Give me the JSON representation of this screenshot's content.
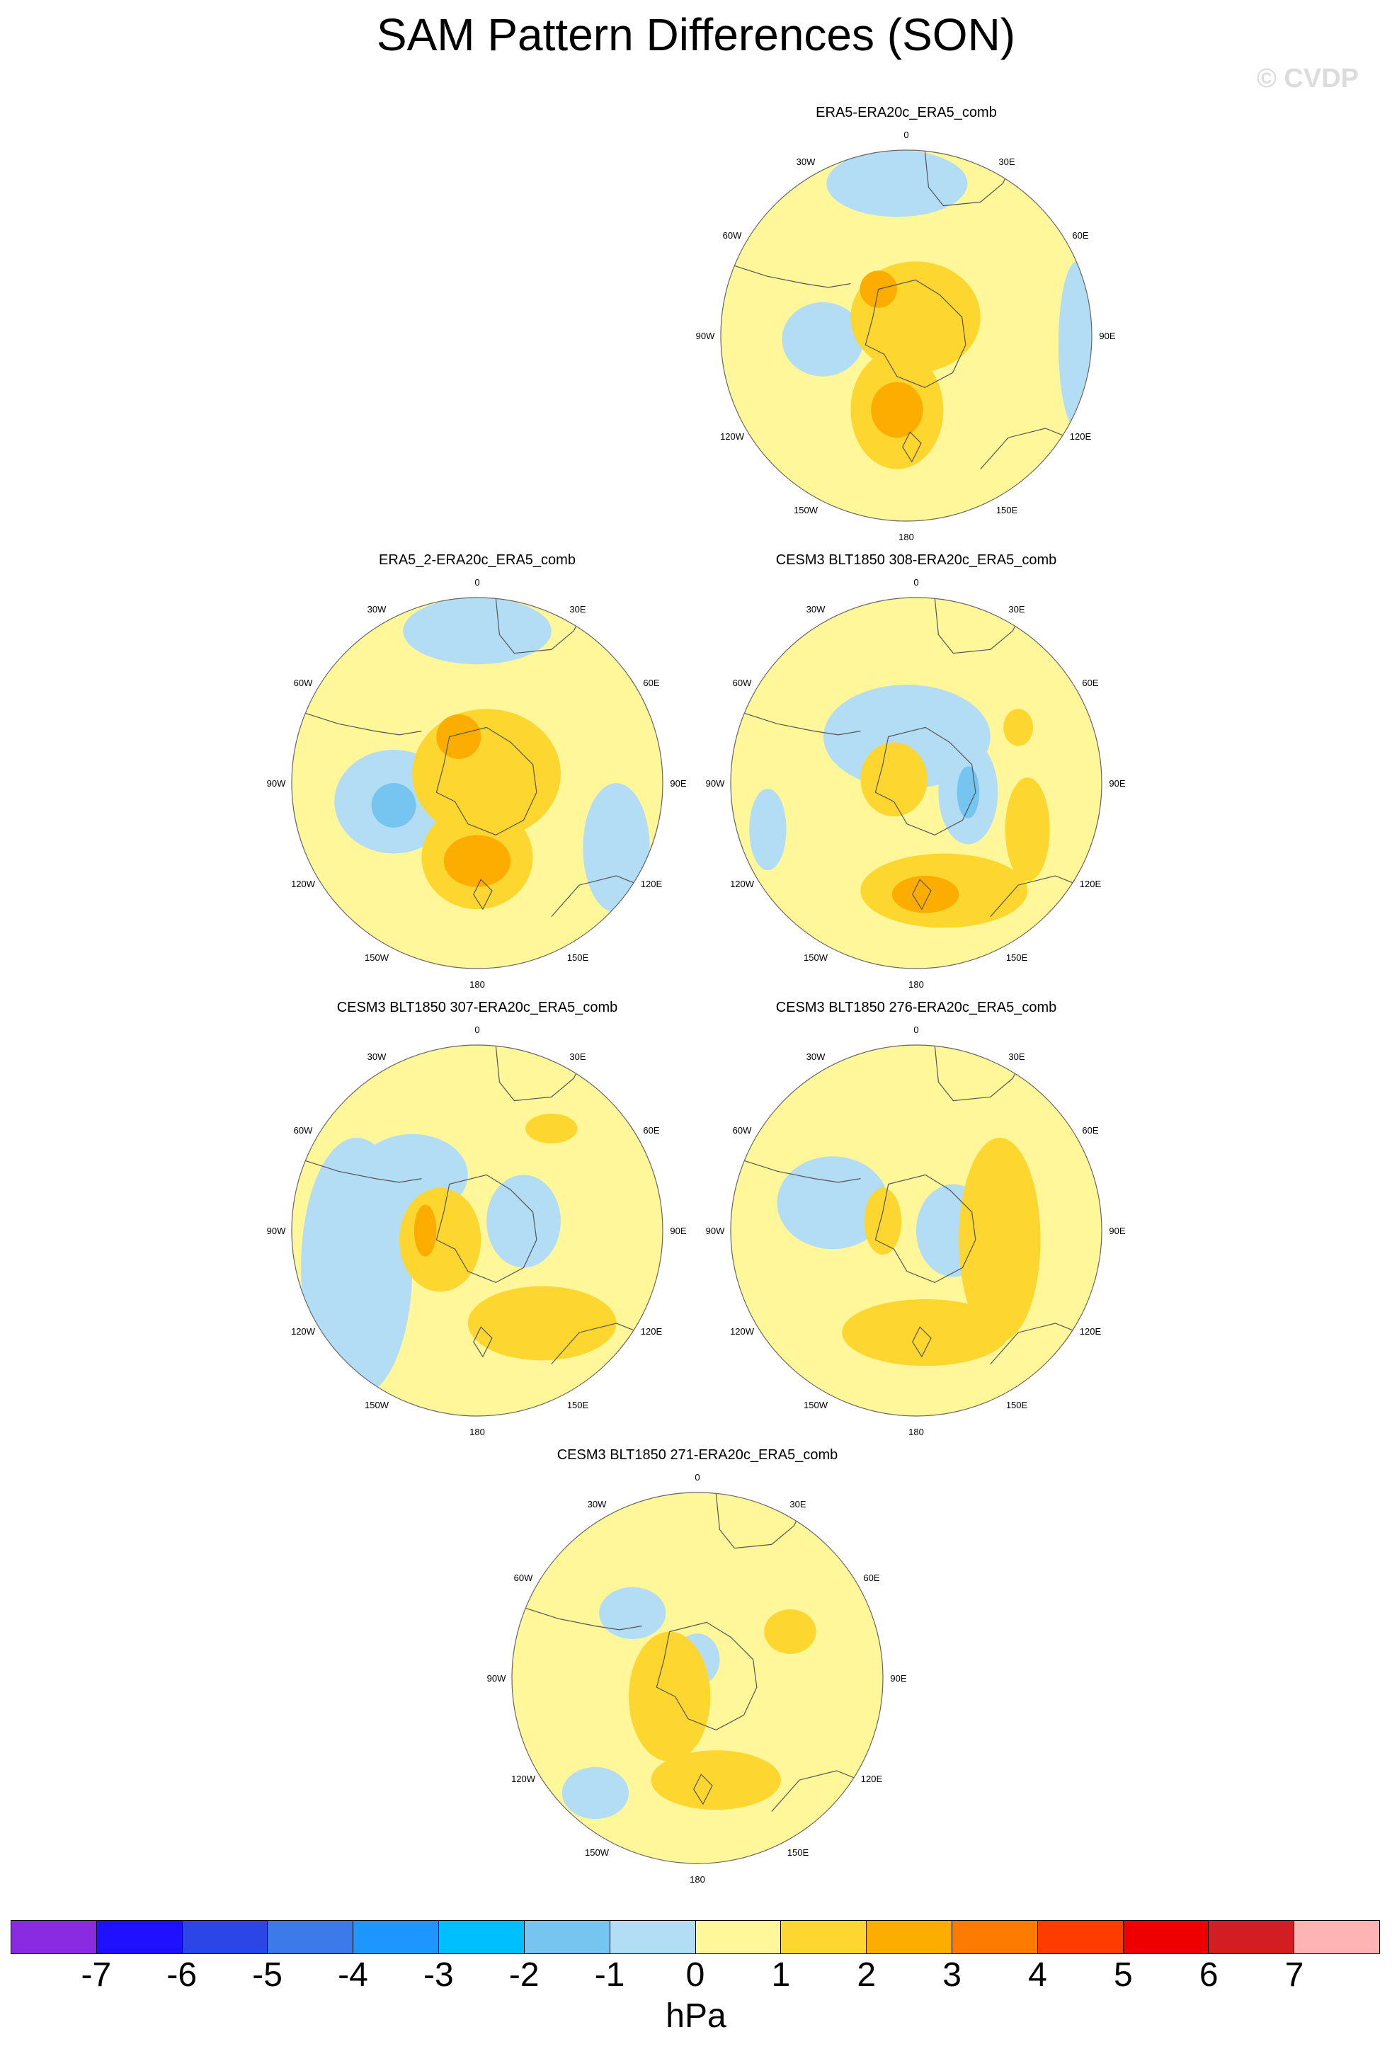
{
  "title": "SAM Pattern Differences (SON)",
  "watermark": "© CVDP",
  "longitude_labels": [
    "0",
    "30E",
    "60E",
    "90E",
    "120E",
    "150E",
    "180",
    "150W",
    "120W",
    "90W",
    "60W",
    "30W"
  ],
  "colors": {
    "ocean_base": "#fff799",
    "pos_1": "#fdd72f",
    "pos_2": "#fdac00",
    "neg_1": "#b3dcf5",
    "neg_2": "#75c5f0",
    "coast": "#555555"
  },
  "panels": [
    {
      "title": "ERA5-ERA20c_ERA5_comb",
      "pattern": "era5"
    },
    {
      "title": "ERA5_2-ERA20c_ERA5_comb",
      "pattern": "era5_2"
    },
    {
      "title": "CESM3 BLT1850 308-ERA20c_ERA5_comb",
      "pattern": "m308"
    },
    {
      "title": "CESM3 BLT1850 307-ERA20c_ERA5_comb",
      "pattern": "m307"
    },
    {
      "title": "CESM3 BLT1850 276-ERA20c_ERA5_comb",
      "pattern": "m276"
    },
    {
      "title": "CESM3 BLT1850 271-ERA20c_ERA5_comb",
      "pattern": "m271"
    }
  ],
  "colorbar": {
    "colors": [
      "#8a2be2",
      "#1f10ff",
      "#2b45e6",
      "#3b7ae8",
      "#1e96ff",
      "#00bfff",
      "#75c5f0",
      "#b3dcf5",
      "#fff799",
      "#fdd72f",
      "#fdac00",
      "#fd7c00",
      "#ff3c00",
      "#ee0000",
      "#d21e22",
      "#ffb4b4"
    ],
    "tick_labels": [
      "-7",
      "-6",
      "-5",
      "-4",
      "-3",
      "-2",
      "-1",
      "0",
      "1",
      "2",
      "3",
      "4",
      "5",
      "6",
      "7"
    ],
    "unit": "hPa"
  }
}
